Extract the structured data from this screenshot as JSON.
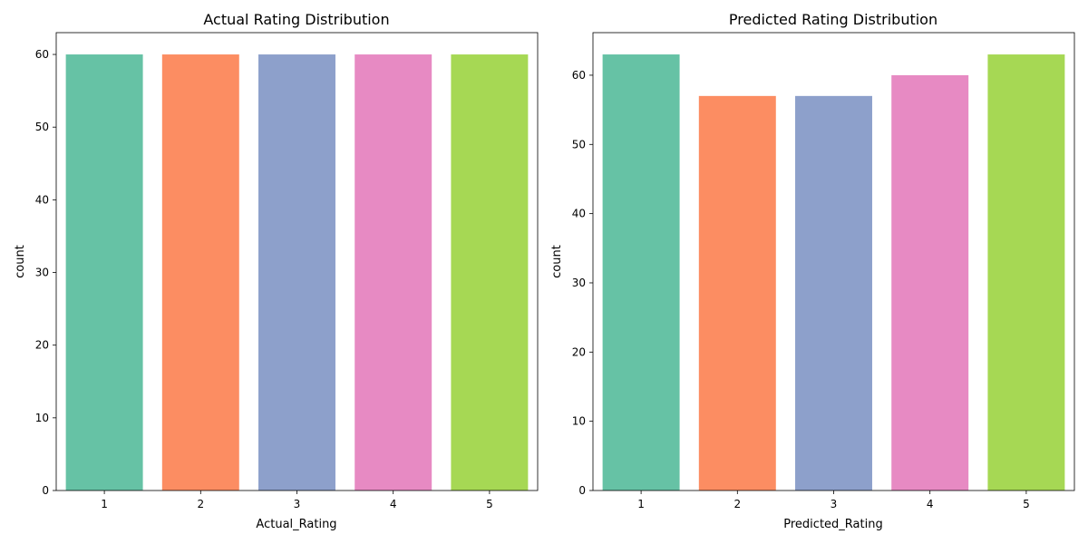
{
  "chart_data": [
    {
      "type": "bar",
      "title": "Actual Rating Distribution",
      "xlabel": "Actual_Rating",
      "ylabel": "count",
      "categories": [
        "1",
        "2",
        "3",
        "4",
        "5"
      ],
      "values": [
        60,
        60,
        60,
        60,
        60
      ],
      "ylim": [
        0,
        63
      ],
      "yticks": [
        0,
        10,
        20,
        30,
        40,
        50,
        60
      ],
      "grid": false
    },
    {
      "type": "bar",
      "title": "Predicted Rating Distribution",
      "xlabel": "Predicted_Rating",
      "ylabel": "count",
      "categories": [
        "1",
        "2",
        "3",
        "4",
        "5"
      ],
      "values": [
        63,
        57,
        57,
        60,
        63
      ],
      "ylim": [
        0,
        66.15
      ],
      "yticks": [
        0,
        10,
        20,
        30,
        40,
        50,
        60
      ],
      "grid": false
    }
  ],
  "colors": [
    "#66c2a5",
    "#fc8d62",
    "#8da0cb",
    "#e78ac3",
    "#a6d854"
  ]
}
